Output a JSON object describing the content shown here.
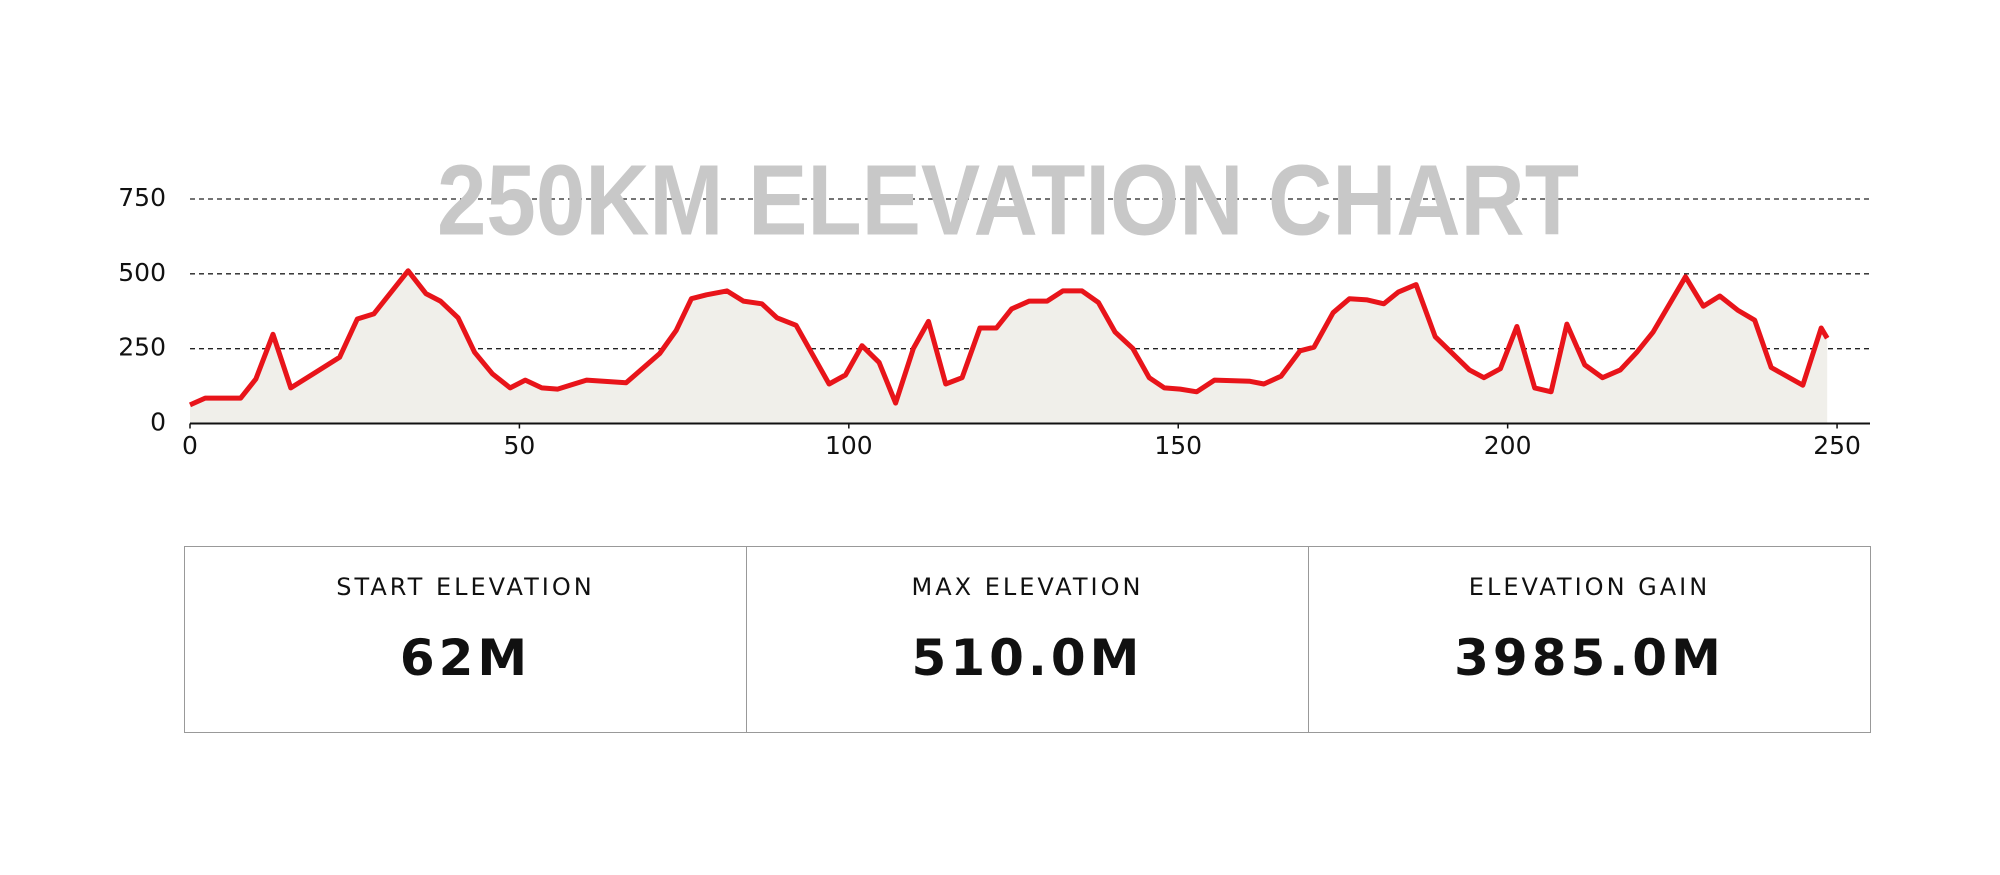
{
  "chart_data": {
    "type": "line",
    "title": "250KM ELEVATION CHART",
    "x": [
      0,
      2.3,
      7.7,
      10,
      12.6,
      15.3,
      19,
      22.7,
      25.4,
      27.9,
      33.1,
      35.8,
      38,
      40.7,
      43.2,
      45.9,
      48.6,
      50.9,
      53.4,
      55.8,
      60.2,
      66.2,
      71.3,
      73.8,
      76.1,
      78.4,
      81.5,
      84,
      86.8,
      89.1,
      92,
      97,
      99.5,
      102,
      104.6,
      107.1,
      109.8,
      112.1,
      114.7,
      117.2,
      119.9,
      122.4,
      124.7,
      127.4,
      130.1,
      132.5,
      135.4,
      137.9,
      140.4,
      143.1,
      145.6,
      147.9,
      150.3,
      152.8,
      155.5,
      160.9,
      163,
      165.6,
      168.5,
      170.6,
      173.5,
      176,
      178.7,
      181.2,
      183.4,
      186.1,
      189,
      194.2,
      196.4,
      198.9,
      201.4,
      204.1,
      206.6,
      209,
      211.7,
      214.4,
      217.1,
      219.6,
      222.1,
      227,
      229.7,
      232.2,
      234.9,
      237.5,
      240,
      244.8,
      247.6,
      248.5
    ],
    "series": [
      {
        "color": "#e8141a",
        "fill": "#f0efea",
        "values": [
          62,
          85,
          85,
          149,
          298,
          119,
          170,
          221,
          349,
          366,
          510,
          434,
          409,
          353,
          238,
          166,
          119,
          145,
          119,
          115,
          145,
          136,
          234,
          311,
          417,
          430,
          443,
          409,
          400,
          353,
          328,
          132,
          162,
          260,
          204,
          68,
          251,
          341,
          132,
          153,
          319,
          319,
          383,
          409,
          409,
          443,
          443,
          404,
          306,
          251,
          153,
          119,
          115,
          106,
          145,
          141,
          132,
          158,
          243,
          255,
          370,
          417,
          413,
          400,
          439,
          464,
          290,
          179,
          153,
          183,
          324,
          119,
          106,
          332,
          196,
          153,
          179,
          238,
          306,
          490,
          392,
          426,
          379,
          345,
          187,
          128,
          319,
          285
        ]
      }
    ],
    "xlim": [
      0,
      255
    ],
    "xticks": [
      0,
      50,
      100,
      150,
      200,
      250
    ],
    "ylim": [
      0,
      750
    ],
    "yticks": [
      0,
      250,
      500,
      750
    ],
    "grid": true
  },
  "stats": [
    {
      "label": "START ELEVATION",
      "value": "62M"
    },
    {
      "label": "MAX ELEVATION",
      "value": "510.0M"
    },
    {
      "label": "ELEVATION GAIN",
      "value": "3985.0M"
    }
  ]
}
